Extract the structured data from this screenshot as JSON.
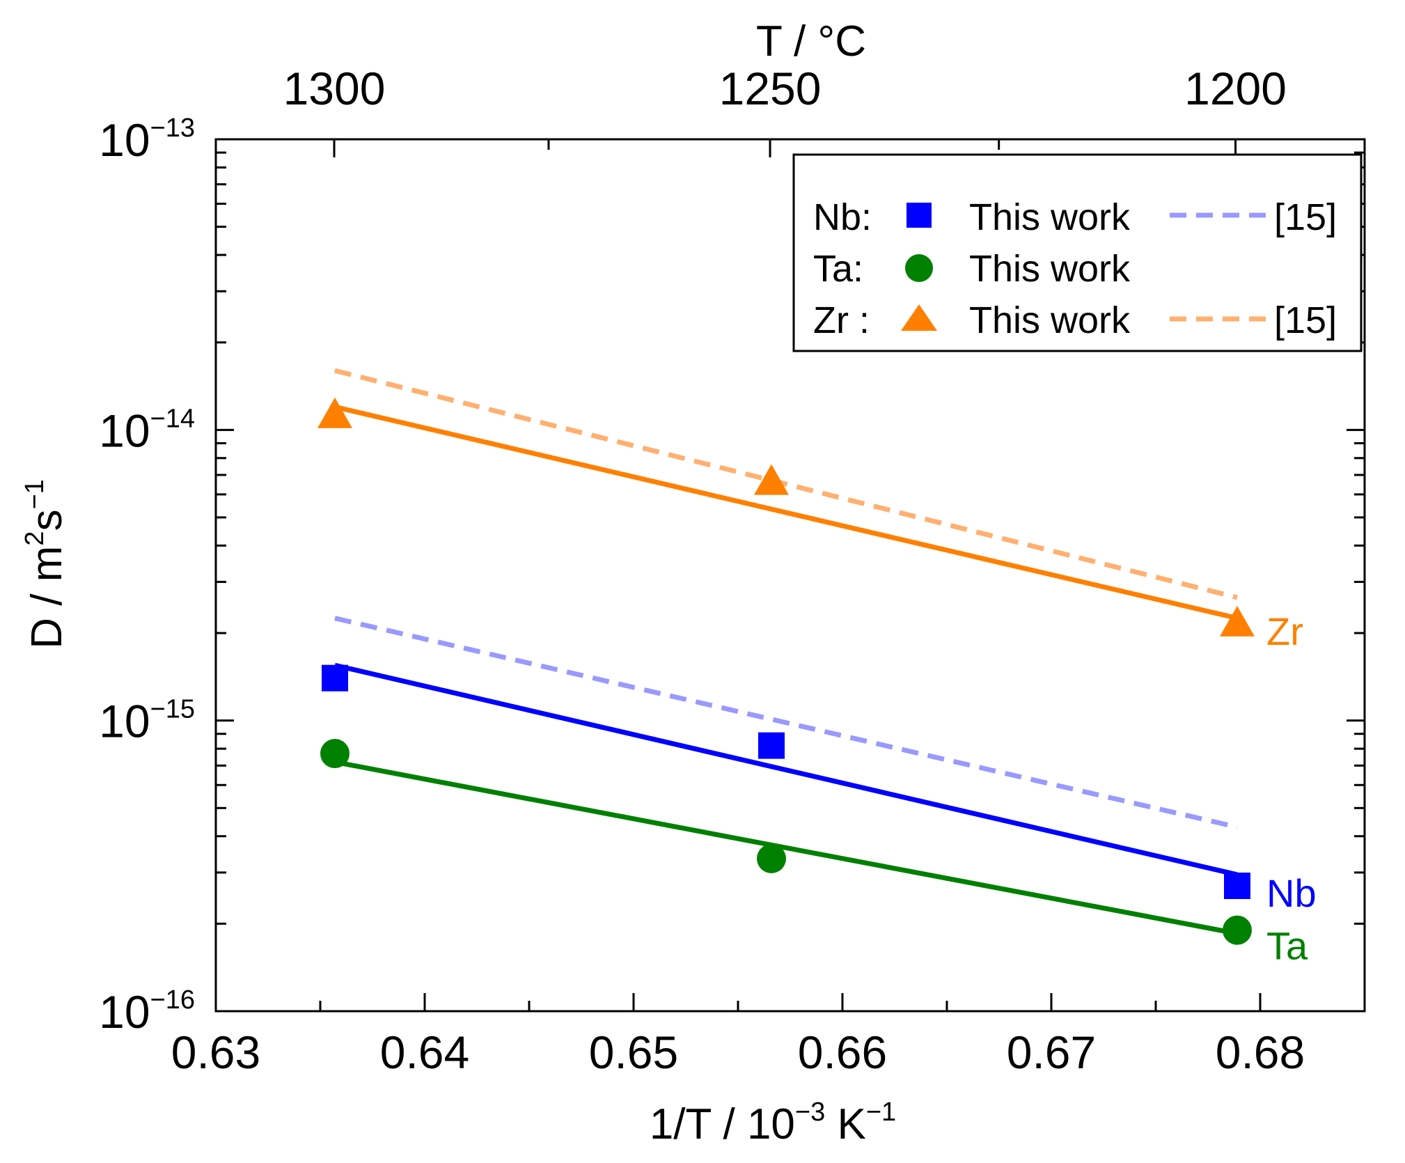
{
  "chart_data": {
    "type": "scatter",
    "x_axis": {
      "label_main": "1/T / 10",
      "label_exp": "−3",
      "label_unit": " K",
      "label_unit_exp": "−1",
      "range": [
        0.63,
        0.685
      ],
      "ticks": [
        0.63,
        0.64,
        0.65,
        0.66,
        0.67,
        0.68
      ],
      "tick_labels": [
        "0.63",
        "0.64",
        "0.65",
        "0.66",
        "0.67",
        "0.68"
      ],
      "minor_ticks": [
        0.635,
        0.645,
        0.655,
        0.665,
        0.675
      ]
    },
    "x2_axis": {
      "label": "T / °C",
      "ticks_celsius": [
        1300,
        1250,
        1200
      ],
      "tick_labels": [
        "1300",
        "1250",
        "1200"
      ],
      "minor_ticks_celsius": [
        1275,
        1225
      ]
    },
    "y_axis": {
      "label_main": "D / m",
      "label_exp1": "2",
      "label_mid": "s",
      "label_exp2": "−1",
      "scale": "log",
      "range": [
        1e-16,
        1e-13
      ],
      "ticks": [
        1e-16,
        1e-15,
        1e-14,
        1e-13
      ],
      "tick_base": "10",
      "tick_exps": [
        "−16",
        "−15",
        "−14",
        "−13"
      ]
    },
    "legend": {
      "position": "top-right",
      "rows": [
        {
          "element": "Nb:",
          "marker_label": "This work",
          "ref_label": "[15]"
        },
        {
          "element": "Ta:",
          "marker_label": "This work",
          "ref_label": ""
        },
        {
          "element": "Zr :",
          "marker_label": "This work",
          "ref_label": "[15]"
        }
      ]
    },
    "series": [
      {
        "name": "Nb",
        "label": "Nb",
        "color": "#0000ff",
        "marker": "square",
        "points": [
          [
            0.6357,
            1.4e-15
          ],
          [
            0.6566,
            8.2e-16
          ],
          [
            0.6789,
            2.7e-16
          ]
        ],
        "fit": [
          [
            0.6357,
            1.55e-15
          ],
          [
            0.6789,
            2.95e-16
          ]
        ],
        "ref_color": "#9999ff",
        "ref_line": [
          [
            0.6357,
            2.25e-15
          ],
          [
            0.6789,
            4.3e-16
          ]
        ]
      },
      {
        "name": "Ta",
        "label": "Ta",
        "color": "#008000",
        "marker": "circle",
        "points": [
          [
            0.6357,
            7.7e-16
          ],
          [
            0.6566,
            3.35e-16
          ],
          [
            0.6789,
            1.9e-16
          ]
        ],
        "fit": [
          [
            0.6357,
            7.2e-16
          ],
          [
            0.6789,
            1.85e-16
          ]
        ]
      },
      {
        "name": "Zr",
        "label": "Zr",
        "color": "#ff8000",
        "marker": "triangle",
        "points": [
          [
            0.6357,
            1.12e-14
          ],
          [
            0.6566,
            6.6e-15
          ],
          [
            0.6789,
            2.15e-15
          ]
        ],
        "fit": [
          [
            0.6357,
            1.2e-14
          ],
          [
            0.6789,
            2.25e-15
          ]
        ],
        "ref_color": "#ffb070",
        "ref_line": [
          [
            0.6357,
            1.6e-14
          ],
          [
            0.6789,
            2.65e-15
          ]
        ]
      }
    ]
  }
}
